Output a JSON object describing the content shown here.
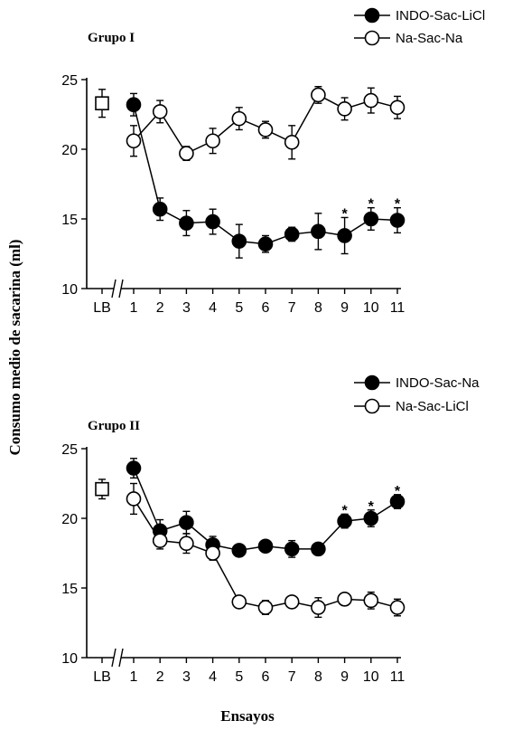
{
  "ylabel": "Consumo medio de sacarina (ml)",
  "xlabel": "Ensayos",
  "chart_data": [
    {
      "type": "line",
      "title": "Grupo I",
      "categories": [
        "LB",
        "1",
        "2",
        "3",
        "4",
        "5",
        "6",
        "7",
        "8",
        "9",
        "10",
        "11"
      ],
      "ylim": [
        10,
        25
      ],
      "yticks": [
        10,
        15,
        20,
        25
      ],
      "baseline": {
        "label": "LB",
        "value": 23.3,
        "err": 1.0
      },
      "legend_position": "top-right",
      "series": [
        {
          "name": "INDO-Sac-LiCl",
          "marker": "filled-circle",
          "x": [
            1,
            2,
            3,
            4,
            5,
            6,
            7,
            8,
            9,
            10,
            11
          ],
          "values": [
            23.2,
            15.7,
            14.7,
            14.8,
            13.4,
            13.2,
            13.9,
            14.1,
            13.8,
            15.0,
            14.9
          ],
          "err": [
            0.8,
            0.8,
            0.9,
            0.9,
            1.2,
            0.6,
            0.5,
            1.3,
            1.3,
            0.8,
            0.9
          ],
          "significant": [
            9,
            10,
            11
          ]
        },
        {
          "name": "Na-Sac-Na",
          "marker": "open-circle",
          "x": [
            1,
            2,
            3,
            4,
            5,
            6,
            7,
            8,
            9,
            10,
            11
          ],
          "values": [
            20.6,
            22.7,
            19.7,
            20.6,
            22.2,
            21.4,
            20.5,
            23.9,
            22.9,
            23.5,
            23.0
          ],
          "err": [
            1.1,
            0.8,
            0.5,
            0.9,
            0.8,
            0.6,
            1.2,
            0.6,
            0.8,
            0.9,
            0.8
          ]
        }
      ]
    },
    {
      "type": "line",
      "title": "Grupo II",
      "categories": [
        "LB",
        "1",
        "2",
        "3",
        "4",
        "5",
        "6",
        "7",
        "8",
        "9",
        "10",
        "11"
      ],
      "ylim": [
        10,
        25
      ],
      "yticks": [
        10,
        15,
        20,
        25
      ],
      "baseline": {
        "label": "LB",
        "value": 22.1,
        "err": 0.7
      },
      "legend_position": "top-right",
      "series": [
        {
          "name": "INDO-Sac-Na",
          "marker": "filled-circle",
          "x": [
            1,
            2,
            3,
            4,
            5,
            6,
            7,
            8,
            9,
            10,
            11
          ],
          "values": [
            23.6,
            19.1,
            19.7,
            18.1,
            17.7,
            18.0,
            17.8,
            17.8,
            19.8,
            20.0,
            21.2
          ],
          "err": [
            0.7,
            0.8,
            0.8,
            0.6,
            0.2,
            0.2,
            0.6,
            0.2,
            0.5,
            0.6,
            0.5
          ],
          "significant": [
            9,
            10,
            11
          ]
        },
        {
          "name": "Na-Sac-LiCl",
          "marker": "open-circle",
          "x": [
            1,
            2,
            3,
            4,
            5,
            6,
            7,
            8,
            9,
            10,
            11
          ],
          "values": [
            21.4,
            18.4,
            18.2,
            17.5,
            14.0,
            13.6,
            14.0,
            13.6,
            14.2,
            14.1,
            13.6
          ],
          "err": [
            1.1,
            0.6,
            0.7,
            0.5,
            0.2,
            0.5,
            0.4,
            0.7,
            0.3,
            0.6,
            0.6
          ]
        }
      ]
    }
  ]
}
